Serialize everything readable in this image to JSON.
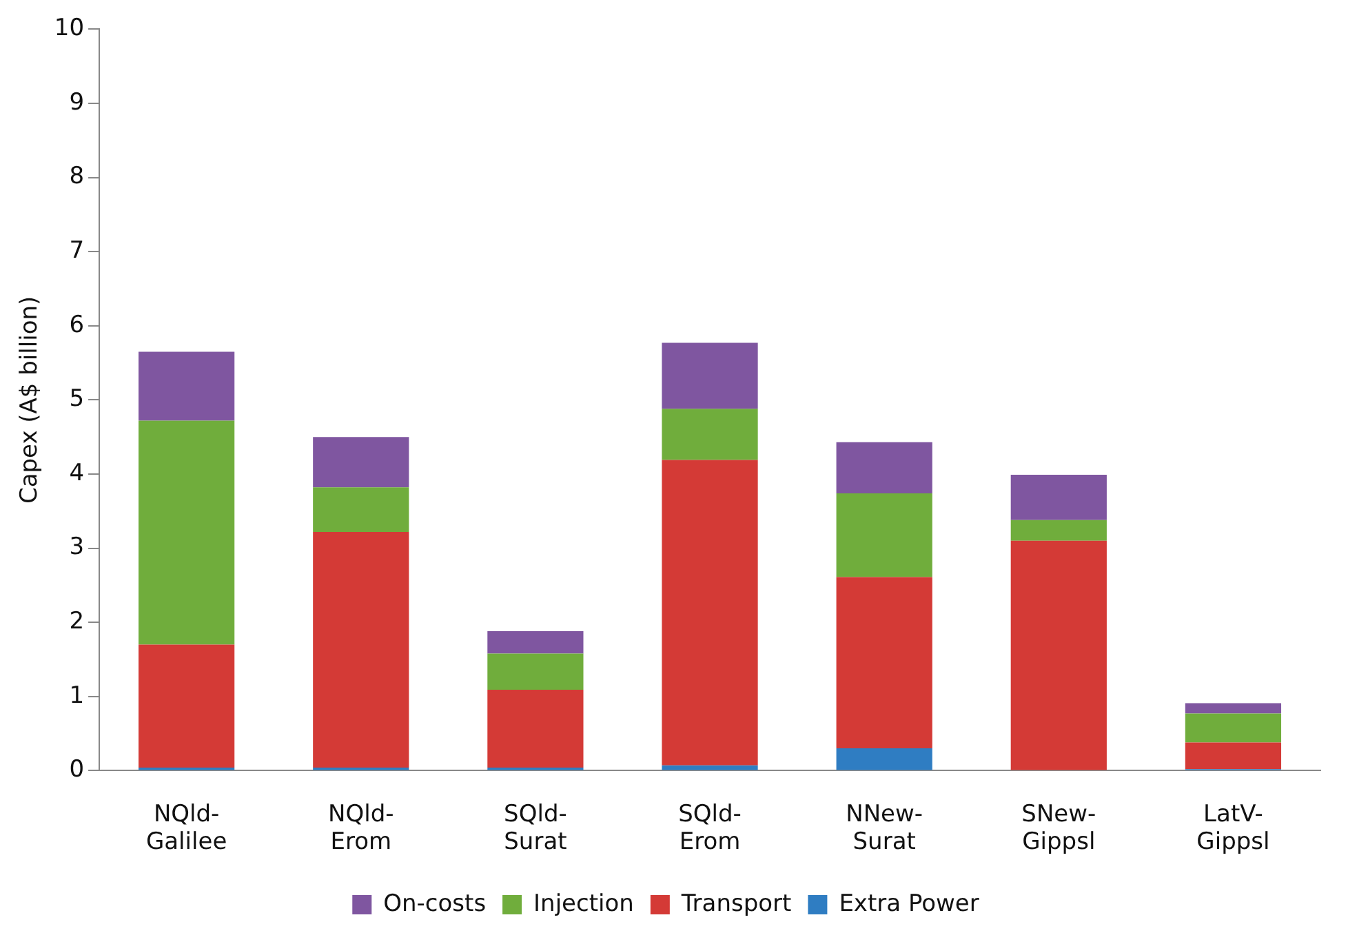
{
  "chart_data": {
    "type": "bar",
    "stacked": true,
    "ylabel": "Capex (A$ billion)",
    "categories": [
      "NQld-\nGalilee",
      "NQld-\nErom",
      "SQld-\nSurat",
      "SQld-\nErom",
      "NNew-\nSurat",
      "SNew-\nGippsl",
      "LatV-\nGippsl"
    ],
    "series": [
      {
        "name": "Extra Power",
        "color": "#2f7dc2",
        "values": [
          0.04,
          0.04,
          0.04,
          0.07,
          0.3,
          0,
          0.02
        ]
      },
      {
        "name": "Transport",
        "color": "#d43a36",
        "values": [
          1.66,
          3.18,
          1.05,
          4.12,
          2.31,
          3.1,
          0.36
        ]
      },
      {
        "name": "Injection",
        "color": "#70ad3c",
        "values": [
          3.02,
          0.6,
          0.49,
          0.69,
          1.13,
          0.28,
          0.39
        ]
      },
      {
        "name": "On-costs",
        "color": "#7f56a0",
        "values": [
          0.93,
          0.68,
          0.3,
          0.89,
          0.69,
          0.61,
          0.14
        ]
      }
    ],
    "ylim": [
      0,
      10
    ],
    "yticks": [
      0,
      1,
      2,
      3,
      4,
      5,
      6,
      7,
      8,
      9,
      10
    ],
    "grid": false,
    "legend": "bottom"
  }
}
